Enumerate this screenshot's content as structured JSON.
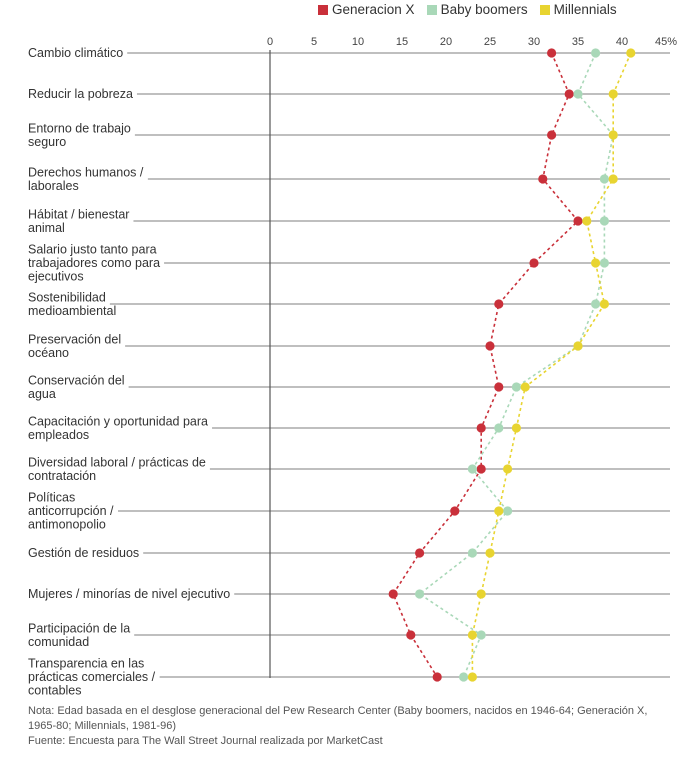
{
  "chart_data": {
    "type": "scatter",
    "title": "",
    "xlabel": "",
    "ylabel": "",
    "x_ticks": [
      "0",
      "5",
      "10",
      "15",
      "20",
      "25",
      "30",
      "35",
      "40",
      "45%"
    ],
    "xlim": [
      0,
      45
    ],
    "legend_position": "top",
    "grid": "horizontal row lines",
    "categories": [
      "Cambio climático",
      "Reducir la pobreza",
      "Entorno de trabajo seguro",
      "Derechos humanos / laborales",
      "Hábitat / bienestar animal",
      "Salario justo tanto para trabajadores como para ejecutivos",
      "Sostenibilidad medioambiental",
      "Preservación del océano",
      "Conservación del agua",
      "Capacitación y oportunidad para empleados",
      "Diversidad laboral / prácticas de contratación",
      "Políticas anticorrupción / antimonopolio",
      "Gestión de residuos",
      "Mujeres / minorías de nivel ejecutivo",
      "Participación de la comunidad",
      "Transparencia en las prácticas comerciales / contables"
    ],
    "category_lines": [
      [
        "Cambio climático"
      ],
      [
        "Reducir la pobreza"
      ],
      [
        "Entorno de trabajo",
        "seguro"
      ],
      [
        "Derechos humanos /",
        "laborales"
      ],
      [
        "Hábitat / bienestar",
        "animal"
      ],
      [
        "Salario justo tanto para",
        "trabajadores como para",
        "ejecutivos"
      ],
      [
        "Sostenibilidad",
        "medioambiental"
      ],
      [
        "Preservación del",
        "océano"
      ],
      [
        "Conservación del",
        "agua"
      ],
      [
        "Capacitación y oportunidad para",
        "empleados"
      ],
      [
        "Diversidad laboral / prácticas de",
        "contratación"
      ],
      [
        "Políticas",
        "anticorrupción /",
        "antimonopolio"
      ],
      [
        "Gestión de residuos"
      ],
      [
        "Mujeres / minorías de nivel ejecutivo"
      ],
      [
        "Participación de la",
        "comunidad"
      ],
      [
        "Transparencia en las",
        "prácticas comerciales /",
        "contables"
      ]
    ],
    "series": [
      {
        "name": "Generacion X",
        "color": "#c9303a",
        "values": [
          32,
          34,
          32,
          31,
          35,
          30,
          26,
          25,
          26,
          24,
          24,
          21,
          17,
          14,
          16,
          19
        ]
      },
      {
        "name": "Baby boomers",
        "color": "#a9d8b8",
        "values": [
          37,
          35,
          39,
          38,
          38,
          38,
          37,
          35,
          28,
          26,
          23,
          27,
          23,
          17,
          24,
          22
        ]
      },
      {
        "name": "Millennials",
        "color": "#e8d430",
        "values": [
          41,
          39,
          39,
          39,
          36,
          37,
          38,
          35,
          29,
          28,
          27,
          26,
          25,
          24,
          23,
          23
        ]
      }
    ]
  },
  "notes": {
    "line1": "Nota: Edad basada en el desglose generacional del Pew Research Center (Baby boomers, nacidos en 1946-64; Generación X,",
    "line2": "1965-80; Millennials, 1981-96)",
    "line3": "Fuente: Encuesta para The Wall Street Journal realizada por MarketCast"
  }
}
